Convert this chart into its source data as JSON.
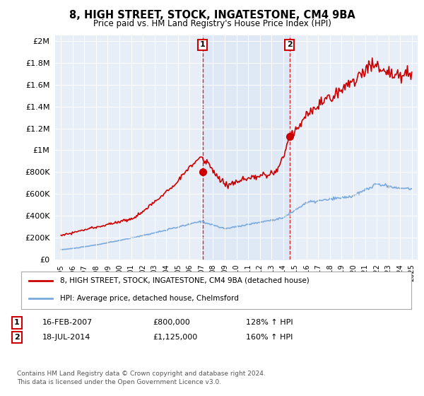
{
  "title": "8, HIGH STREET, STOCK, INGATESTONE, CM4 9BA",
  "subtitle": "Price paid vs. HM Land Registry's House Price Index (HPI)",
  "hpi_label": "HPI: Average price, detached house, Chelmsford",
  "price_label": "8, HIGH STREET, STOCK, INGATESTONE, CM4 9BA (detached house)",
  "price_color": "#cc0000",
  "hpi_color": "#7aaadd",
  "ann1_x": 2007.12,
  "ann1_price": 800000,
  "ann1_text": "16-FEB-2007",
  "ann1_amount": "£800,000",
  "ann1_pct": "128% ↑ HPI",
  "ann2_x": 2014.55,
  "ann2_price": 1125000,
  "ann2_text": "18-JUL-2014",
  "ann2_amount": "£1,125,000",
  "ann2_pct": "160% ↑ HPI",
  "ylim": [
    0,
    2050000
  ],
  "xlim": [
    1994.5,
    2025.5
  ],
  "shade_color": "#dce8f5",
  "footer": "Contains HM Land Registry data © Crown copyright and database right 2024.\nThis data is licensed under the Open Government Licence v3.0."
}
